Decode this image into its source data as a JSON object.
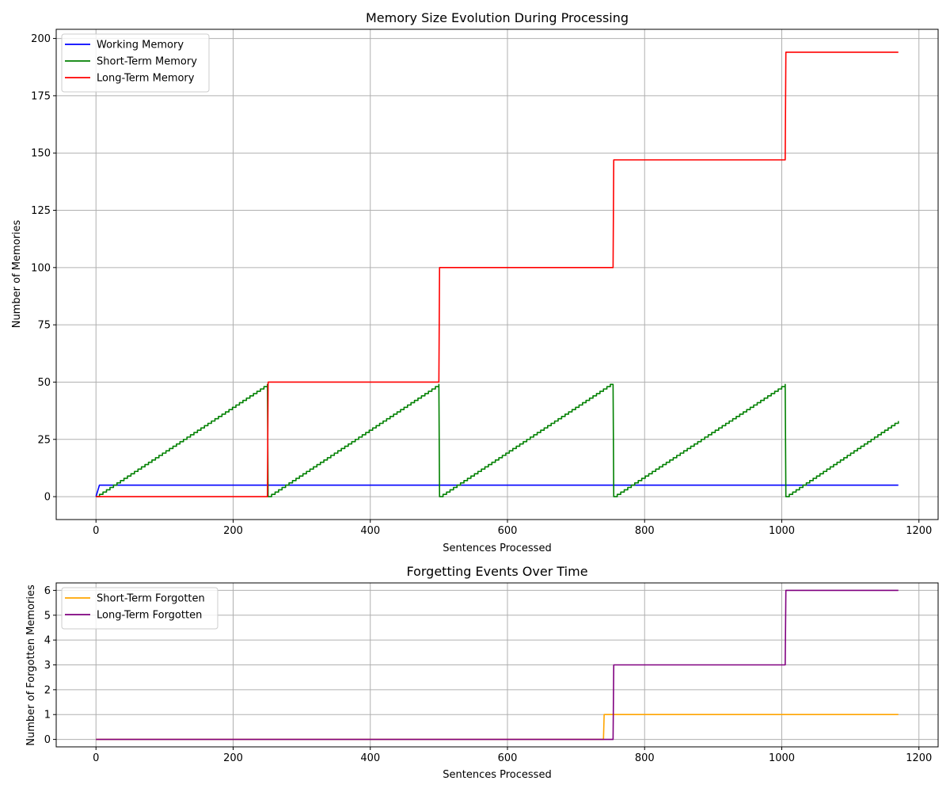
{
  "chart_data": [
    {
      "type": "line",
      "title": "Memory Size Evolution During Processing",
      "xlabel": "Sentences Processed",
      "ylabel": "Number of Memories",
      "xlim": [
        -58,
        1228
      ],
      "ylim": [
        -10,
        204
      ],
      "xticks": [
        0,
        200,
        400,
        600,
        800,
        1000,
        1200
      ],
      "yticks": [
        0,
        25,
        50,
        75,
        100,
        125,
        150,
        175,
        200
      ],
      "grid": true,
      "legend_position": "upper-left",
      "series": [
        {
          "name": "Working Memory",
          "color": "#0000ff",
          "x": [
            0,
            5,
            1170
          ],
          "y": [
            0,
            5,
            5
          ]
        },
        {
          "name": "Short-Term Memory",
          "color": "#008000",
          "sawtooth": true,
          "x": [
            0,
            250,
            251,
            500,
            501,
            740,
            750,
            754,
            755,
            1005,
            1006,
            1170
          ],
          "y": [
            0,
            49,
            0,
            49,
            0,
            47,
            49,
            49,
            0,
            49,
            0,
            33
          ]
        },
        {
          "name": "Long-Term Memory",
          "color": "#ff0000",
          "x": [
            0,
            250,
            251,
            500,
            501,
            754,
            755,
            1005,
            1006,
            1170
          ],
          "y": [
            0,
            0,
            50,
            50,
            100,
            100,
            147,
            147,
            194,
            194
          ]
        }
      ]
    },
    {
      "type": "line",
      "title": "Forgetting Events Over Time",
      "xlabel": "Sentences Processed",
      "ylabel": "Number of Forgotten Memories",
      "xlim": [
        -58,
        1228
      ],
      "ylim": [
        -0.3,
        6.3
      ],
      "xticks": [
        0,
        200,
        400,
        600,
        800,
        1000,
        1200
      ],
      "yticks": [
        0,
        1,
        2,
        3,
        4,
        5,
        6
      ],
      "grid": true,
      "legend_position": "upper-left",
      "series": [
        {
          "name": "Short-Term Forgotten",
          "color": "#ffa500",
          "x": [
            0,
            740,
            741,
            1170
          ],
          "y": [
            0,
            0,
            1,
            1
          ]
        },
        {
          "name": "Long-Term Forgotten",
          "color": "#800080",
          "x": [
            0,
            754,
            755,
            1005,
            1006,
            1170
          ],
          "y": [
            0,
            0,
            3,
            3,
            6,
            6
          ]
        }
      ]
    }
  ]
}
